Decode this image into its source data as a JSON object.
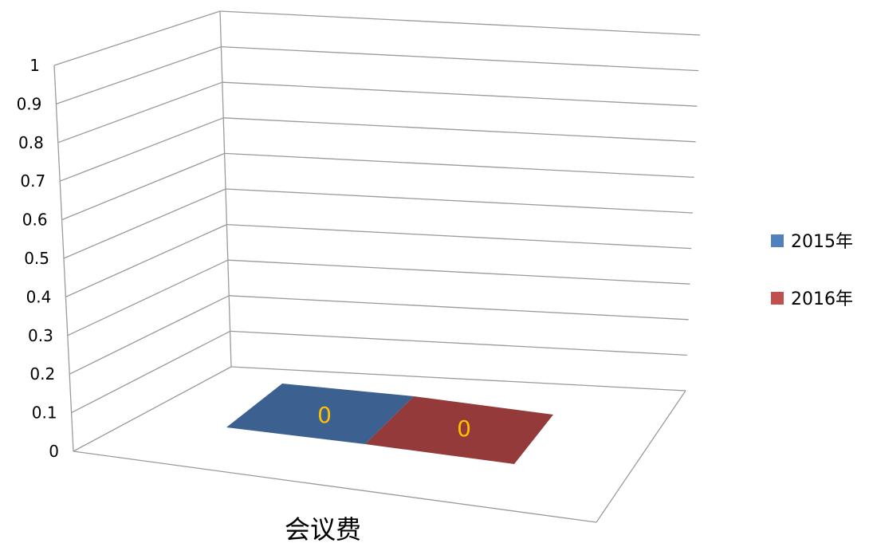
{
  "chart_data": {
    "type": "bar",
    "categories": [
      "会议费"
    ],
    "series": [
      {
        "name": "2015年",
        "values": [
          0
        ],
        "color": "#4F81BD",
        "top_color": "#3C6190"
      },
      {
        "name": "2016年",
        "values": [
          0
        ],
        "color": "#C0504D",
        "top_color": "#953A3A"
      }
    ],
    "ylim": [
      0,
      1
    ],
    "yticks": [
      "0",
      "0.1",
      "0.2",
      "0.3",
      "0.4",
      "0.5",
      "0.6",
      "0.7",
      "0.8",
      "0.9",
      "1"
    ],
    "data_labels": [
      "0",
      "0"
    ],
    "data_label_color": "#FFC000",
    "grid": true,
    "legend_position": "right",
    "projection": "3d-perspective"
  }
}
